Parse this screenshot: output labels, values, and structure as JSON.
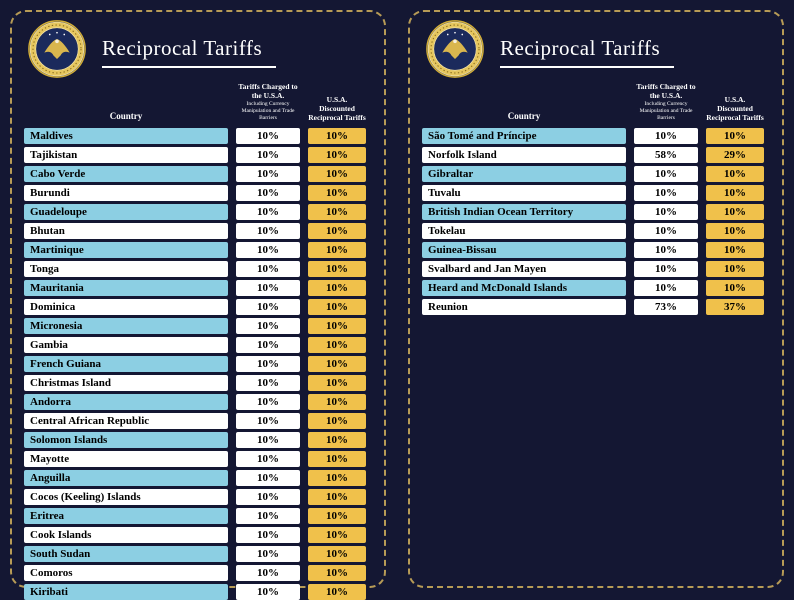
{
  "colors": {
    "background": "#141733",
    "panel_border_dash": "#b79b56",
    "row_blue": "#8ccfe3",
    "row_white": "#ffffff",
    "tariff_gold": "#f0c14b",
    "title_text": "#ffffff"
  },
  "panels": [
    {
      "title": "Reciprocal Tariffs",
      "columns": {
        "country": "Country",
        "charged_main": "Tariffs Charged to the U.S.A.",
        "charged_sub": "Including Currency Manipulation and Trade Barriers",
        "discounted": "U.S.A. Discounted Reciprocal Tariffs"
      }
    },
    {
      "title": "Reciprocal Tariffs",
      "columns": {
        "country": "Country",
        "charged_main": "Tariffs Charged to the U.S.A.",
        "charged_sub": "Including Currency Manipulation and Trade Barriers",
        "discounted": "U.S.A. Discounted Reciprocal Tariffs"
      }
    }
  ],
  "chart_data": [
    {
      "type": "table",
      "title": "Reciprocal Tariffs (board 1)",
      "columns": [
        "Country",
        "Tariffs Charged to the U.S.A.",
        "U.S.A. Discounted Reciprocal Tariffs"
      ],
      "rows": [
        [
          "Maldives",
          "10%",
          "10%"
        ],
        [
          "Tajikistan",
          "10%",
          "10%"
        ],
        [
          "Cabo Verde",
          "10%",
          "10%"
        ],
        [
          "Burundi",
          "10%",
          "10%"
        ],
        [
          "Guadeloupe",
          "10%",
          "10%"
        ],
        [
          "Bhutan",
          "10%",
          "10%"
        ],
        [
          "Martinique",
          "10%",
          "10%"
        ],
        [
          "Tonga",
          "10%",
          "10%"
        ],
        [
          "Mauritania",
          "10%",
          "10%"
        ],
        [
          "Dominica",
          "10%",
          "10%"
        ],
        [
          "Micronesia",
          "10%",
          "10%"
        ],
        [
          "Gambia",
          "10%",
          "10%"
        ],
        [
          "French Guiana",
          "10%",
          "10%"
        ],
        [
          "Christmas Island",
          "10%",
          "10%"
        ],
        [
          "Andorra",
          "10%",
          "10%"
        ],
        [
          "Central African Republic",
          "10%",
          "10%"
        ],
        [
          "Solomon Islands",
          "10%",
          "10%"
        ],
        [
          "Mayotte",
          "10%",
          "10%"
        ],
        [
          "Anguilla",
          "10%",
          "10%"
        ],
        [
          "Cocos (Keeling) Islands",
          "10%",
          "10%"
        ],
        [
          "Eritrea",
          "10%",
          "10%"
        ],
        [
          "Cook Islands",
          "10%",
          "10%"
        ],
        [
          "South Sudan",
          "10%",
          "10%"
        ],
        [
          "Comoros",
          "10%",
          "10%"
        ],
        [
          "Kiribati",
          "10%",
          "10%"
        ]
      ]
    },
    {
      "type": "table",
      "title": "Reciprocal Tariffs (board 2)",
      "columns": [
        "Country",
        "Tariffs Charged to the U.S.A.",
        "U.S.A. Discounted Reciprocal Tariffs"
      ],
      "rows": [
        [
          "São Tomé and Príncipe",
          "10%",
          "10%"
        ],
        [
          "Norfolk Island",
          "58%",
          "29%"
        ],
        [
          "Gibraltar",
          "10%",
          "10%"
        ],
        [
          "Tuvalu",
          "10%",
          "10%"
        ],
        [
          "British Indian Ocean Territory",
          "10%",
          "10%"
        ],
        [
          "Tokelau",
          "10%",
          "10%"
        ],
        [
          "Guinea-Bissau",
          "10%",
          "10%"
        ],
        [
          "Svalbard and Jan Mayen",
          "10%",
          "10%"
        ],
        [
          "Heard and McDonald Islands",
          "10%",
          "10%"
        ],
        [
          "Reunion",
          "73%",
          "37%"
        ]
      ]
    }
  ]
}
